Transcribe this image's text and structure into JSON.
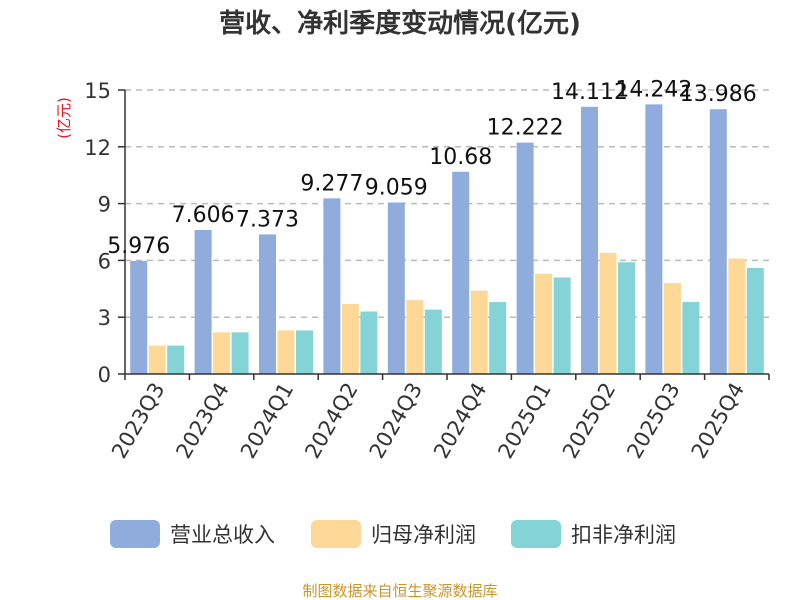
{
  "title": "营收、净利季度变动情况(亿元)",
  "unit_label": "(亿元)",
  "source": "制图数据来自恒生聚源数据库",
  "colors": {
    "revenue": "#8facdc",
    "net_profit": "#fdd897",
    "deducted_net_profit": "#84d3d6",
    "grid": "#bbbbbb",
    "axis": "#333333"
  },
  "chart_data": {
    "type": "bar",
    "title": "营收、净利季度变动情况(亿元)",
    "ylabel": "(亿元)",
    "xlabel": "",
    "ylim": [
      0,
      15
    ],
    "yticks": [
      0,
      3,
      6,
      9,
      12,
      15
    ],
    "grid": true,
    "legend_position": "bottom",
    "categories": [
      "2023Q3",
      "2023Q4",
      "2024Q1",
      "2024Q2",
      "2024Q3",
      "2024Q4",
      "2025Q1",
      "2025Q2",
      "2025Q3",
      "2025Q4"
    ],
    "series": [
      {
        "name": "营业总收入",
        "color": "#8facdc",
        "values": [
          5.976,
          7.606,
          7.373,
          9.277,
          9.059,
          10.68,
          12.222,
          14.112,
          14.242,
          13.986
        ],
        "labels": [
          "5.976",
          "7.606",
          "7.373",
          "9.277",
          "9.059",
          "10.68",
          "12.222",
          "14.112",
          "14.242",
          "13.986"
        ]
      },
      {
        "name": "归母净利润",
        "color": "#fdd897",
        "values": [
          1.5,
          2.2,
          2.3,
          3.7,
          3.9,
          4.4,
          5.3,
          6.4,
          4.8,
          6.1
        ]
      },
      {
        "name": "扣非净利润",
        "color": "#84d3d6",
        "values": [
          1.5,
          2.2,
          2.3,
          3.3,
          3.4,
          3.8,
          5.1,
          5.9,
          3.8,
          5.6
        ]
      }
    ]
  }
}
